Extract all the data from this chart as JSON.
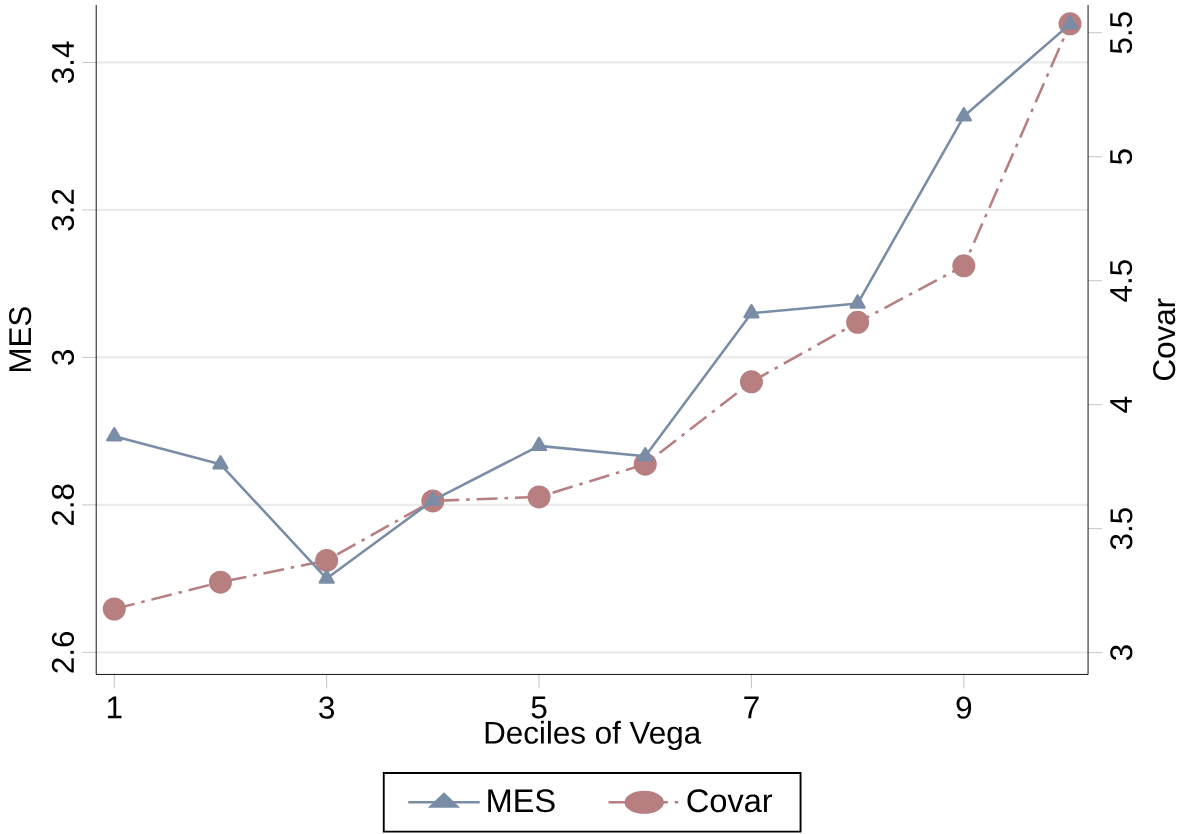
{
  "chart_data": {
    "type": "line",
    "xlabel": "Deciles of Vega",
    "ylabel": "MES",
    "y2label": "Covar",
    "x": [
      1,
      2,
      3,
      4,
      5,
      6,
      7,
      8,
      9,
      10
    ],
    "series": [
      {
        "name": "MES",
        "color": "#7a8da6",
        "marker": "triangle",
        "line_style": "solid",
        "values": [
          2.893,
          2.855,
          2.7,
          2.806,
          2.88,
          2.866,
          3.06,
          3.073,
          3.327,
          3.452
        ]
      },
      {
        "name": "Covar",
        "color": "#b77f80",
        "marker": "circle",
        "line_style": "dashed",
        "axis": "y2",
        "values": [
          3.176,
          3.284,
          3.372,
          3.612,
          3.628,
          3.76,
          4.092,
          4.332,
          4.56,
          5.536
        ]
      }
    ],
    "xlim": [
      0.83,
      10.17
    ],
    "xticks": [
      1,
      3,
      5,
      7,
      9
    ],
    "ylim": [
      2.57,
      3.478
    ],
    "yticks": [
      2.6,
      2.8,
      3,
      3.2,
      3.4
    ],
    "y2lim": [
      2.912,
      5.612
    ],
    "y2ticks": [
      3,
      3.5,
      4,
      4.5,
      5,
      5.5
    ],
    "grid": "y",
    "legend": "bottom"
  }
}
